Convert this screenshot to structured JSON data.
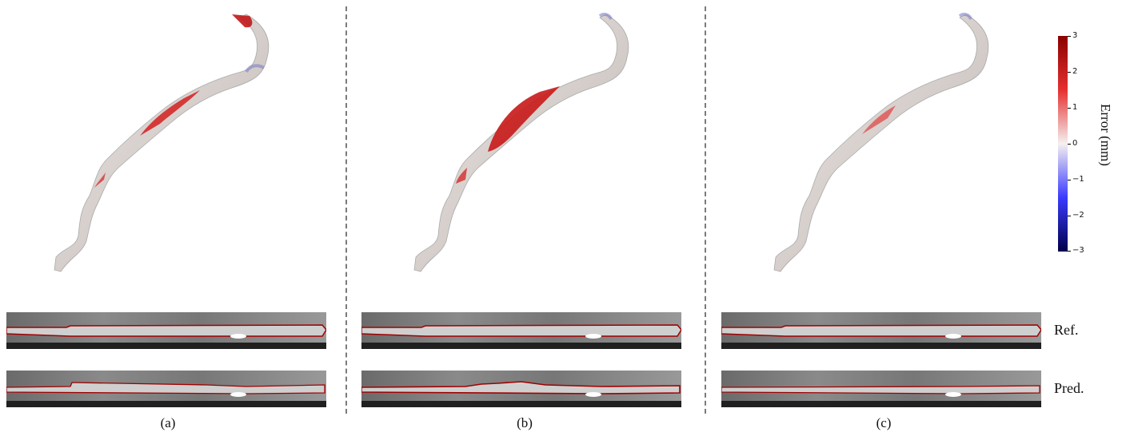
{
  "panels": [
    {
      "id": "a",
      "label": "(a)"
    },
    {
      "id": "b",
      "label": "(b)"
    },
    {
      "id": "c",
      "label": "(c)"
    }
  ],
  "rows": {
    "ref": "Ref.",
    "pred": "Pred."
  },
  "colorbar": {
    "title": "Error (mm)",
    "ticks": [
      "3",
      "2",
      "1",
      "0",
      "−1",
      "−2",
      "−3"
    ],
    "range": [
      -3,
      3
    ],
    "colors": {
      "high": "#8b0000",
      "mid": "#f5f0f0",
      "low": "#00004a"
    }
  },
  "colors": {
    "vessel_base": "#d8d2d0",
    "error_red": "#d42020",
    "contour": "#a00000",
    "divider": "#7a7a7a"
  }
}
